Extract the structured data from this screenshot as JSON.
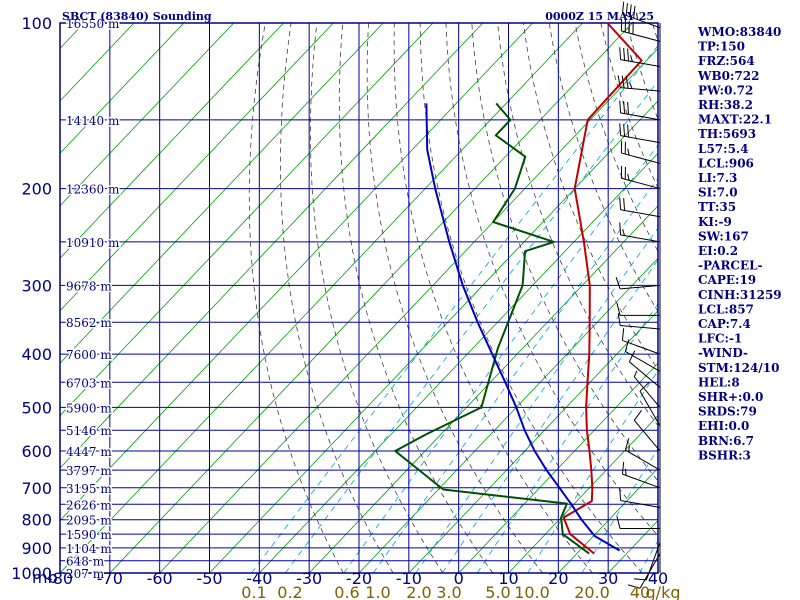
{
  "header": {
    "station_title": "SBCT (83840) Sounding",
    "valid_time": "0000Z 15 MAY 25"
  },
  "colors": {
    "frame": "#000080",
    "grid_blue": "#0000a0",
    "isotherm_green": "#00a000",
    "mixing_ratio": "#00a0e0",
    "dry_adiabat": "#404040",
    "temperature": "#c00000",
    "dewpoint": "#005000",
    "parcel": "#0000c0",
    "height_label": "#000080",
    "mixing_ratio_label": "#806000"
  },
  "indices": [
    "WMO:83840",
    "TP:150",
    "FRZ:564",
    "WB0:722",
    "PW:0.72",
    "RH:38.2",
    "MAXT:22.1",
    "TH:5693",
    "L57:5.4",
    "LCL:906",
    "LI:7.3",
    "SI:7.0",
    "TT:35",
    "KI:-9",
    "SW:167",
    "EI:0.2",
    "-PARCEL-",
    "CAPE:19",
    "CINH:31259",
    "LCL:857",
    "CAP:7.4",
    "LFC:-1",
    "-WIND-",
    "STM:124/10",
    "HEL:8",
    "SHR+:0.0",
    "SRDS:79",
    "EHI:0.0",
    "BRN:6.7",
    "BSHR:3"
  ],
  "chart_data": {
    "type": "line",
    "title": "SBCT (83840) Sounding",
    "subtitle": "0000Z 15 MAY 25",
    "xlabel": "",
    "ylabel": "mb",
    "x_unit": "°C (skewed)",
    "xlim": [
      -80,
      40
    ],
    "ylim": [
      1000,
      100
    ],
    "y_scale": "log",
    "x_ticks": [
      -80,
      -70,
      -60,
      -50,
      -40,
      -30,
      -20,
      -10,
      0,
      10,
      20,
      30,
      40
    ],
    "x_tick_labels": [
      "-80",
      "-70",
      "-60",
      "-50",
      "-40",
      "-30",
      "-20",
      "-10",
      "0",
      "10",
      "20",
      "30",
      "40"
    ],
    "y_ticks": [
      100,
      200,
      300,
      400,
      500,
      600,
      700,
      800,
      900,
      1000
    ],
    "y_tick_labels": [
      "100",
      "200",
      "300",
      "400",
      "500",
      "600",
      "700",
      "800",
      "900",
      "1000"
    ],
    "height_labels": [
      {
        "p": 100,
        "text": "16550 m"
      },
      {
        "p": 150,
        "text": "14140 m"
      },
      {
        "p": 200,
        "text": "12360 m"
      },
      {
        "p": 250,
        "text": "10910 m"
      },
      {
        "p": 300,
        "text": "9678 m"
      },
      {
        "p": 350,
        "text": "8562 m"
      },
      {
        "p": 400,
        "text": "7600 m"
      },
      {
        "p": 450,
        "text": "6703 m"
      },
      {
        "p": 500,
        "text": "5900 m"
      },
      {
        "p": 550,
        "text": "5146 m"
      },
      {
        "p": 600,
        "text": "4447 m"
      },
      {
        "p": 650,
        "text": "3797 m"
      },
      {
        "p": 700,
        "text": "3195 m"
      },
      {
        "p": 750,
        "text": "2626 m"
      },
      {
        "p": 800,
        "text": "2095 m"
      },
      {
        "p": 850,
        "text": "1590 m"
      },
      {
        "p": 900,
        "text": "1104 m"
      },
      {
        "p": 950,
        "text": "648 m"
      },
      {
        "p": 1000,
        "text": "207 m"
      }
    ],
    "mixing_ratio_labels": [
      "0.1",
      "0.2",
      "0.6",
      "1.0",
      "2.0",
      "3.0",
      "5.0",
      "10.0",
      "20.0",
      "40",
      "g/kg"
    ],
    "mixing_ratio_values": [
      0.1,
      0.2,
      0.6,
      1.0,
      2.0,
      3.0,
      5.0,
      10.0,
      20.0,
      40
    ],
    "series": [
      {
        "name": "Temperature",
        "color": "#c00000",
        "points": [
          {
            "p": 922,
            "t": 23.5
          },
          {
            "p": 850,
            "t": 15.0
          },
          {
            "p": 793,
            "t": 10.5
          },
          {
            "p": 740,
            "t": 13.0
          },
          {
            "p": 700,
            "t": 10.6
          },
          {
            "p": 650,
            "t": 7.0
          },
          {
            "p": 600,
            "t": 3.0
          },
          {
            "p": 550,
            "t": -1.5
          },
          {
            "p": 500,
            "t": -6.0
          },
          {
            "p": 450,
            "t": -10.5
          },
          {
            "p": 400,
            "t": -15.5
          },
          {
            "p": 350,
            "t": -21.5
          },
          {
            "p": 300,
            "t": -28.5
          },
          {
            "p": 250,
            "t": -38.0
          },
          {
            "p": 200,
            "t": -50.0
          },
          {
            "p": 150,
            "t": -60.5
          },
          {
            "p": 117,
            "t": -61.0
          },
          {
            "p": 100,
            "t": -75.0
          }
        ]
      },
      {
        "name": "Dewpoint",
        "color": "#005000",
        "points": [
          {
            "p": 922,
            "t": 22.5
          },
          {
            "p": 850,
            "t": 13.5
          },
          {
            "p": 793,
            "t": 10.0
          },
          {
            "p": 748,
            "t": 8.5
          },
          {
            "p": 705,
            "t": -19.0
          },
          {
            "p": 600,
            "t": -36.0
          },
          {
            "p": 560,
            "t": -33.0
          },
          {
            "p": 500,
            "t": -27.0
          },
          {
            "p": 390,
            "t": -35.0
          },
          {
            "p": 300,
            "t": -42.0
          },
          {
            "p": 260,
            "t": -48.0
          },
          {
            "p": 250,
            "t": -44.0
          },
          {
            "p": 230,
            "t": -60.0
          },
          {
            "p": 200,
            "t": -62.0
          },
          {
            "p": 175,
            "t": -66.0
          },
          {
            "p": 160,
            "t": -76.0
          },
          {
            "p": 150,
            "t": -76.0
          },
          {
            "p": 140,
            "t": -82.0
          }
        ]
      },
      {
        "name": "Parcel",
        "color": "#0000c0",
        "points": [
          {
            "p": 910,
            "t": 28.0
          },
          {
            "p": 857,
            "t": 20.3
          },
          {
            "p": 800,
            "t": 14.5
          },
          {
            "p": 750,
            "t": 9.5
          },
          {
            "p": 700,
            "t": 4.0
          },
          {
            "p": 650,
            "t": -2.0
          },
          {
            "p": 600,
            "t": -8.0
          },
          {
            "p": 550,
            "t": -14.0
          },
          {
            "p": 500,
            "t": -20.0
          },
          {
            "p": 450,
            "t": -27.0
          },
          {
            "p": 400,
            "t": -35.0
          },
          {
            "p": 350,
            "t": -44.0
          },
          {
            "p": 300,
            "t": -54.0
          },
          {
            "p": 250,
            "t": -65.0
          },
          {
            "p": 200,
            "t": -78.0
          },
          {
            "p": 170,
            "t": -87.0
          },
          {
            "p": 140,
            "t": -96.0
          }
        ]
      }
    ],
    "wind_barbs": [
      {
        "p": 102,
        "dir": 290,
        "spd": 45
      },
      {
        "p": 108,
        "dir": 285,
        "spd": 40
      },
      {
        "p": 120,
        "dir": 280,
        "spd": 35
      },
      {
        "p": 133,
        "dir": 275,
        "spd": 35
      },
      {
        "p": 150,
        "dir": 280,
        "spd": 30
      },
      {
        "p": 165,
        "dir": 280,
        "spd": 30
      },
      {
        "p": 180,
        "dir": 285,
        "spd": 25
      },
      {
        "p": 200,
        "dir": 285,
        "spd": 25
      },
      {
        "p": 225,
        "dir": 280,
        "spd": 20
      },
      {
        "p": 250,
        "dir": 280,
        "spd": 15
      },
      {
        "p": 300,
        "dir": 265,
        "spd": 10
      },
      {
        "p": 340,
        "dir": 270,
        "spd": 10
      },
      {
        "p": 360,
        "dir": 275,
        "spd": 10
      },
      {
        "p": 400,
        "dir": 290,
        "spd": 10
      },
      {
        "p": 430,
        "dir": 300,
        "spd": 10
      },
      {
        "p": 460,
        "dir": 310,
        "spd": 10
      },
      {
        "p": 500,
        "dir": 320,
        "spd": 5
      },
      {
        "p": 540,
        "dir": 330,
        "spd": 10
      },
      {
        "p": 600,
        "dir": 320,
        "spd": 10
      },
      {
        "p": 650,
        "dir": 300,
        "spd": 15
      },
      {
        "p": 700,
        "dir": 290,
        "spd": 15
      },
      {
        "p": 760,
        "dir": 280,
        "spd": 10
      },
      {
        "p": 830,
        "dir": 270,
        "spd": 10
      },
      {
        "p": 880,
        "dir": 200,
        "spd": 10
      },
      {
        "p": 922,
        "dir": 210,
        "spd": 10
      }
    ]
  }
}
